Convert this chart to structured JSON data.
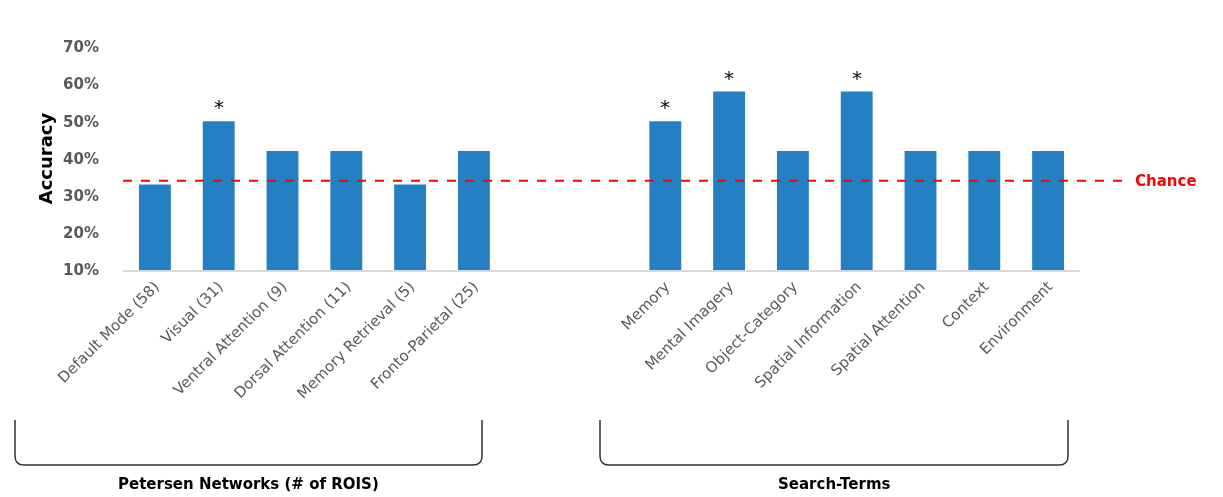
{
  "chart_data": {
    "type": "bar",
    "ylabel": "Accuracy",
    "categories": [
      "Default Mode (58)",
      "Visual (31)",
      "Ventral Attention (9)",
      "Dorsal Attention (11)",
      "Memory Retrieval (5)",
      "Fronto-Parietal (25)",
      null,
      null,
      "Memory",
      "Mental Imagery",
      "Object-Category",
      "Spatial Information",
      "Spatial Attention",
      "Context",
      "Environment"
    ],
    "values": [
      33,
      50,
      42,
      42,
      33,
      42,
      null,
      null,
      50,
      58,
      42,
      58,
      42,
      42,
      42
    ],
    "color": "#2580c3",
    "ylim": [
      10,
      70
    ],
    "yticks": [
      {
        "value": 10,
        "label": "10%"
      },
      {
        "value": 20,
        "label": "20%"
      },
      {
        "value": 30,
        "label": "30%"
      },
      {
        "value": 40,
        "label": "40%"
      },
      {
        "value": 50,
        "label": "50%"
      },
      {
        "value": 60,
        "label": "60%"
      },
      {
        "value": 70,
        "label": "70%"
      }
    ],
    "grid": false,
    "ref_lines": [
      {
        "axis": "y",
        "value": 34,
        "label": "Chance",
        "color": "#ff0000",
        "line_style": "dashed"
      }
    ],
    "annotations": [
      "Petersen Networks (# of ROIS)",
      "Search-Terms",
      {
        "text": "*",
        "x": "Visual (31)",
        "y": 50
      },
      {
        "text": "*",
        "x": "Memory",
        "y": 50
      },
      {
        "text": "*",
        "x": "Mental Imagery",
        "y": 58
      },
      {
        "text": "*",
        "x": "Spatial Information",
        "y": 58
      }
    ]
  }
}
